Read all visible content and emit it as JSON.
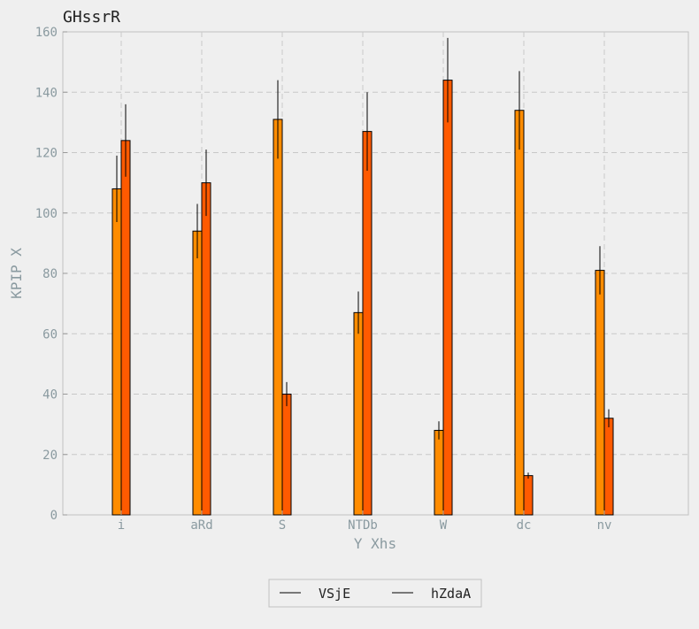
{
  "chart_data": {
    "type": "bar",
    "title": "GHssrR",
    "xlabel": "Y Xhs",
    "ylabel": "KPIP X",
    "categories": [
      "i",
      "aRd",
      "S",
      "NTDb",
      "W",
      "dc",
      "nv"
    ],
    "ylim": [
      0,
      160
    ],
    "yticks": [
      0,
      20,
      40,
      60,
      80,
      100,
      120,
      140,
      160
    ],
    "grid": true,
    "legend_position": "bottom-center",
    "series": [
      {
        "name": "VSjE",
        "color": "#ff8c00",
        "values": [
          108,
          94,
          131,
          67,
          28,
          134,
          81
        ],
        "errors": [
          11,
          9,
          13,
          7,
          3,
          13,
          8
        ]
      },
      {
        "name": "hZdaA",
        "color": "#ff5a00",
        "values": [
          124,
          110,
          40,
          127,
          144,
          13,
          32
        ],
        "errors": [
          12,
          11,
          4,
          13,
          14,
          1,
          3
        ]
      }
    ]
  }
}
